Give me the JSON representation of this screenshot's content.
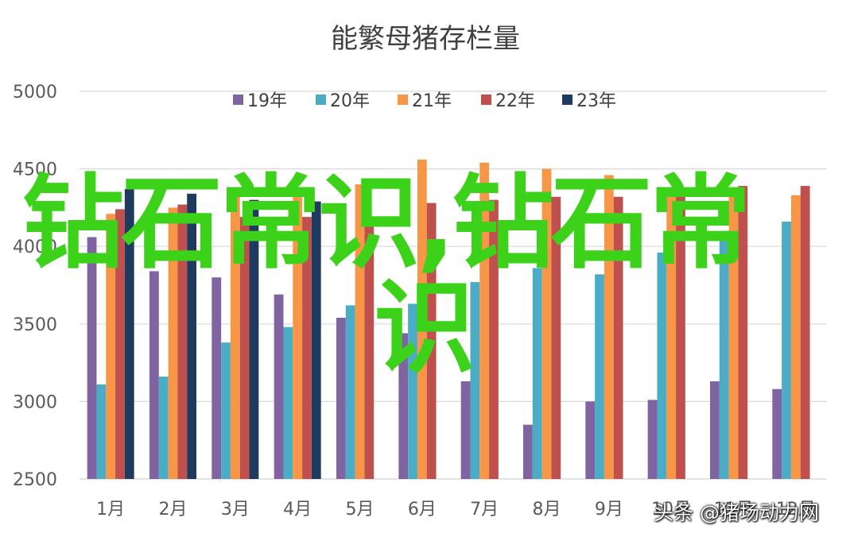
{
  "chart_data": {
    "type": "bar",
    "title": "能繁母猪存栏量",
    "xlabel": "",
    "ylabel": "",
    "categories": [
      "1月",
      "2月",
      "3月",
      "4月",
      "5月",
      "6月",
      "7月",
      "8月",
      "9月",
      "10月",
      "11月",
      "12月"
    ],
    "ylim": [
      2500,
      5000
    ],
    "yticks": [
      2500,
      3000,
      3500,
      4000,
      4500,
      5000
    ],
    "grid": true,
    "legend_position": "top",
    "series": [
      {
        "name": "19年",
        "color": "#8064a2",
        "values": [
          4060,
          3840,
          3800,
          3690,
          3540,
          3440,
          3130,
          2850,
          3000,
          3010,
          3130,
          3080
        ]
      },
      {
        "name": "20年",
        "color": "#4bacc6",
        "values": [
          3110,
          3160,
          3380,
          3480,
          3620,
          3630,
          3770,
          3860,
          3820,
          3960,
          4100,
          4160
        ]
      },
      {
        "name": "21年",
        "color": "#f79646",
        "values": [
          4210,
          4250,
          4330,
          4380,
          4400,
          4560,
          4540,
          4500,
          4460,
          4350,
          4330,
          4330
        ]
      },
      {
        "name": "22年",
        "color": "#c0504d",
        "values": [
          4240,
          4270,
          4190,
          4190,
          4190,
          4280,
          4300,
          4320,
          4320,
          4360,
          4390,
          4390
        ]
      },
      {
        "name": "23年",
        "color": "#1f3a5f",
        "values": [
          4370,
          4340,
          4300,
          4290,
          null,
          null,
          null,
          null,
          null,
          null,
          null,
          null
        ]
      }
    ]
  },
  "watermark": {
    "line1": "钻石常识,钻石常",
    "line2": "识",
    "credit": "头条 @猪场动力网"
  }
}
